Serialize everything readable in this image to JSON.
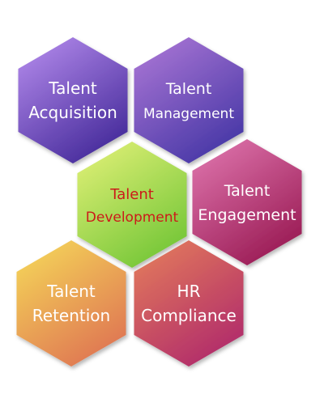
{
  "hexagons": [
    {
      "id": "talent-acquisition",
      "lines": [
        "Talent",
        "Acquisition"
      ],
      "text_color": "#ffffff",
      "gradient": [
        "#b98ff0",
        "#4a2f9e"
      ]
    },
    {
      "id": "talent-management",
      "lines": [
        "Talent",
        "Management"
      ],
      "text_color": "#ffffff",
      "gradient": [
        "#b07ad8",
        "#4b3aa8"
      ]
    },
    {
      "id": "talent-development",
      "lines": [
        "Talent",
        "Development"
      ],
      "text_color": "#cc1a1a",
      "gradient": [
        "#e6f27a",
        "#79c83a"
      ]
    },
    {
      "id": "talent-engagement",
      "lines": [
        "Talent",
        "Engagement"
      ],
      "text_color": "#ffffff",
      "gradient": [
        "#e27ab2",
        "#9d1f58"
      ]
    },
    {
      "id": "talent-retention",
      "lines": [
        "Talent",
        "Retention"
      ],
      "text_color": "#ffffff",
      "gradient": [
        "#f6dc5a",
        "#e07a52"
      ]
    },
    {
      "id": "hr-compliance",
      "lines": [
        "HR",
        "Compliance"
      ],
      "text_color": "#ffffff",
      "gradient": [
        "#e6805a",
        "#b32f6a"
      ]
    }
  ]
}
